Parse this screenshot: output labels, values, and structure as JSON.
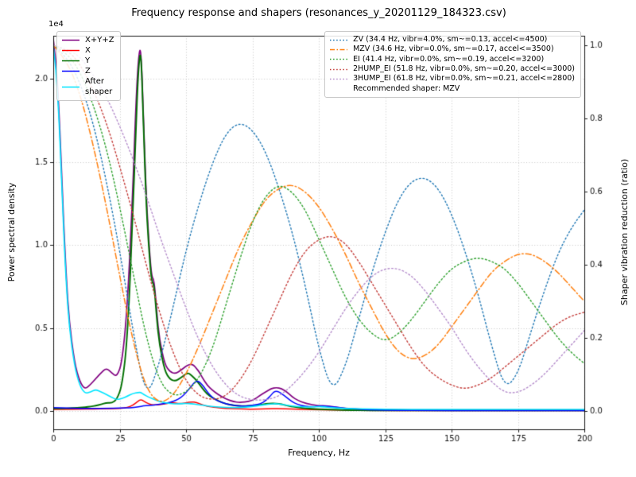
{
  "chart_data": {
    "type": "line",
    "title": "Frequency response and shapers (resonances_y_20201129_184323.csv)",
    "xlabel": "Frequency, Hz",
    "ylabel_left": "Power spectral density",
    "ylabel_right": "Shaper vibration reduction (ratio)",
    "offset_text": "1e4",
    "xlim": [
      0,
      200
    ],
    "ylim_left": [
      -1100,
      22600
    ],
    "ylim_right": [
      -0.05,
      1.026
    ],
    "grid": true,
    "legend_position_left": "upper left",
    "legend_position_right": "upper right",
    "legend_right_footer": "Recommended shaper: MZV",
    "xticks": {
      "values": [
        0,
        25,
        50,
        75,
        100,
        125,
        150,
        175,
        200
      ],
      "labels": [
        "0",
        "25",
        "50",
        "75",
        "100",
        "125",
        "150",
        "175",
        "200"
      ]
    },
    "yticks_left": {
      "values": [
        0,
        5000,
        10000,
        15000,
        20000
      ],
      "labels": [
        "0.0",
        "0.5",
        "1.0",
        "1.5",
        "2.0"
      ]
    },
    "yticks_right": {
      "values": [
        0,
        0.2,
        0.4,
        0.6,
        0.8,
        1.0
      ],
      "labels": [
        "0.0",
        "0.2",
        "0.4",
        "0.6",
        "0.8",
        "1.0"
      ]
    },
    "psd_series": [
      {
        "label": "X+Y+Z",
        "color": "#800080",
        "style": "solid",
        "width": 1.7,
        "axis": "left",
        "x": [
          0,
          1,
          2,
          3,
          4,
          5,
          6,
          8,
          10,
          12,
          14,
          16,
          18,
          20,
          22,
          24,
          26,
          28,
          30,
          31,
          32,
          33,
          34,
          35,
          36,
          37,
          38,
          39,
          40,
          42,
          44,
          46,
          48,
          50,
          51,
          52,
          53,
          54,
          55,
          56,
          58,
          60,
          62,
          65,
          68,
          70,
          72,
          75,
          78,
          80,
          82,
          84,
          86,
          88,
          90,
          92,
          95,
          100,
          102,
          105,
          110,
          115,
          120,
          130,
          140,
          150,
          160,
          170,
          180,
          190,
          200
        ],
        "y": [
          22400,
          21200,
          18600,
          15000,
          11000,
          7800,
          5400,
          2900,
          1750,
          1300,
          1600,
          1950,
          2300,
          2600,
          2300,
          2050,
          3000,
          6500,
          13500,
          18000,
          21200,
          22100,
          17500,
          13000,
          10200,
          8100,
          7900,
          5900,
          4300,
          2800,
          2350,
          2250,
          2450,
          2700,
          2780,
          2820,
          2750,
          2550,
          2350,
          2050,
          1550,
          1250,
          1000,
          720,
          560,
          520,
          540,
          620,
          950,
          1150,
          1350,
          1420,
          1350,
          1150,
          850,
          650,
          460,
          310,
          330,
          260,
          160,
          110,
          85,
          65,
          55,
          45,
          45,
          45,
          45,
          45,
          45
        ]
      },
      {
        "label": "X",
        "color": "#ff0000",
        "style": "solid",
        "width": 1.5,
        "axis": "left",
        "x": [
          0,
          5,
          10,
          15,
          20,
          25,
          28,
          30,
          32,
          33,
          34,
          36,
          38,
          40,
          42,
          44,
          45,
          46,
          48,
          50,
          52,
          54,
          56,
          58,
          60,
          65,
          70,
          75,
          80,
          85,
          90,
          95,
          100,
          110,
          120,
          140,
          160,
          180,
          200
        ],
        "y": [
          100,
          100,
          110,
          120,
          140,
          160,
          210,
          350,
          600,
          700,
          600,
          420,
          360,
          390,
          430,
          480,
          500,
          480,
          440,
          490,
          560,
          510,
          390,
          290,
          230,
          160,
          120,
          110,
          130,
          150,
          120,
          90,
          70,
          45,
          30,
          25,
          20,
          20,
          20
        ]
      },
      {
        "label": "Y",
        "color": "#007000",
        "style": "solid",
        "width": 1.9,
        "axis": "left",
        "x": [
          0,
          2,
          4,
          6,
          8,
          10,
          12,
          14,
          16,
          18,
          20,
          22,
          24,
          26,
          28,
          30,
          31,
          32,
          33,
          34,
          35,
          36,
          37,
          38,
          39,
          40,
          42,
          44,
          46,
          48,
          50,
          51,
          52,
          54,
          56,
          58,
          60,
          62,
          65,
          68,
          70,
          72,
          75,
          78,
          80,
          82,
          84,
          86,
          88,
          90,
          95,
          100,
          105,
          110,
          120,
          130,
          140,
          150,
          160,
          170,
          180,
          190,
          200
        ],
        "y": [
          150,
          150,
          160,
          170,
          185,
          200,
          230,
          270,
          320,
          400,
          500,
          480,
          700,
          1600,
          4500,
          12000,
          16500,
          20500,
          22000,
          17000,
          12500,
          9800,
          7800,
          7600,
          5500,
          4000,
          2400,
          1900,
          1800,
          2000,
          2250,
          2280,
          2150,
          1850,
          1400,
          1000,
          800,
          620,
          430,
          340,
          310,
          300,
          330,
          380,
          430,
          460,
          450,
          410,
          330,
          260,
          160,
          110,
          90,
          60,
          40,
          35,
          30,
          30,
          30,
          30,
          30,
          30,
          30
        ]
      },
      {
        "label": "Z",
        "color": "#0000ff",
        "style": "solid",
        "width": 1.5,
        "axis": "left",
        "x": [
          0,
          5,
          10,
          15,
          20,
          25,
          30,
          32,
          34,
          36,
          38,
          40,
          42,
          44,
          46,
          48,
          50,
          52,
          53,
          54,
          55,
          56,
          57,
          58,
          60,
          62,
          65,
          68,
          70,
          72,
          75,
          78,
          80,
          82,
          83,
          84,
          85,
          86,
          88,
          90,
          92,
          95,
          98,
          100,
          102,
          105,
          108,
          110,
          115,
          120,
          130,
          140,
          160,
          180,
          200
        ],
        "y": [
          200,
          180,
          160,
          155,
          165,
          175,
          210,
          255,
          305,
          335,
          365,
          405,
          455,
          525,
          625,
          800,
          1100,
          1500,
          1700,
          1800,
          1760,
          1600,
          1400,
          1150,
          800,
          600,
          430,
          340,
          310,
          300,
          330,
          430,
          620,
          950,
          1150,
          1200,
          1150,
          1050,
          800,
          550,
          400,
          280,
          255,
          290,
          300,
          260,
          200,
          160,
          100,
          70,
          40,
          30,
          25,
          25,
          25
        ]
      },
      {
        "label": "After\nshaper",
        "color": "#00e5ff",
        "style": "solid",
        "width": 1.6,
        "axis": "left",
        "x": [
          0,
          1,
          2,
          3,
          4,
          5,
          6,
          8,
          10,
          12,
          14,
          16,
          18,
          20,
          22,
          24,
          26,
          28,
          30,
          32,
          33,
          34,
          36,
          38,
          40,
          44,
          48,
          50,
          52,
          55,
          58,
          60,
          65,
          70,
          75,
          78,
          80,
          82,
          84,
          86,
          90,
          95,
          100,
          102,
          105,
          110,
          120,
          130,
          140,
          150,
          160,
          170,
          180,
          190,
          200
        ],
        "y": [
          22000,
          20700,
          18100,
          14500,
          10500,
          7400,
          5100,
          2700,
          1500,
          1050,
          1150,
          1300,
          1150,
          1000,
          820,
          680,
          760,
          900,
          1060,
          1120,
          1120,
          1000,
          830,
          700,
          570,
          430,
          440,
          460,
          440,
          380,
          310,
          270,
          210,
          200,
          270,
          340,
          390,
          430,
          440,
          400,
          300,
          230,
          270,
          250,
          200,
          150,
          115,
          100,
          95,
          95,
          95,
          95,
          95,
          95,
          95
        ]
      }
    ],
    "shaper_series": [
      {
        "label": "ZV (34.4 Hz, vibr=4.0%, sm~=0.13, accel<=4500)",
        "color": "#1f77b4",
        "style": "dotted",
        "width": 1.4,
        "axis": "right",
        "x": [
          0,
          5,
          10,
          15,
          20,
          25,
          30,
          35,
          40,
          45,
          50,
          55,
          60,
          65,
          70,
          75,
          80,
          85,
          90,
          95,
          100,
          105,
          110,
          115,
          120,
          125,
          130,
          135,
          140,
          145,
          150,
          155,
          160,
          165,
          170,
          175,
          180,
          185,
          190,
          195,
          200
        ],
        "y": [
          1.0,
          0.97,
          0.9,
          0.79,
          0.63,
          0.44,
          0.22,
          0.03,
          0.13,
          0.28,
          0.44,
          0.57,
          0.68,
          0.76,
          0.79,
          0.77,
          0.71,
          0.61,
          0.49,
          0.34,
          0.17,
          0.05,
          0.12,
          0.25,
          0.38,
          0.49,
          0.58,
          0.63,
          0.64,
          0.61,
          0.54,
          0.44,
          0.32,
          0.18,
          0.06,
          0.1,
          0.22,
          0.33,
          0.43,
          0.5,
          0.55
        ]
      },
      {
        "label": "MZV (34.6 Hz, vibr=0.0%, sm~=0.17, accel<=3500)",
        "color": "#ff7f0e",
        "style": "dashdot",
        "width": 1.5,
        "axis": "right",
        "x": [
          0,
          5,
          10,
          15,
          20,
          25,
          30,
          35,
          40,
          45,
          50,
          55,
          60,
          65,
          70,
          75,
          80,
          85,
          90,
          95,
          100,
          105,
          110,
          115,
          120,
          125,
          130,
          135,
          140,
          145,
          150,
          155,
          160,
          165,
          170,
          175,
          180,
          185,
          190,
          195,
          200
        ],
        "y": [
          1.0,
          0.96,
          0.87,
          0.73,
          0.56,
          0.37,
          0.19,
          0.06,
          0.02,
          0.04,
          0.1,
          0.18,
          0.27,
          0.36,
          0.45,
          0.52,
          0.58,
          0.61,
          0.62,
          0.6,
          0.56,
          0.5,
          0.43,
          0.35,
          0.28,
          0.21,
          0.16,
          0.14,
          0.15,
          0.18,
          0.23,
          0.28,
          0.33,
          0.38,
          0.41,
          0.43,
          0.43,
          0.41,
          0.38,
          0.34,
          0.3
        ]
      },
      {
        "label": "EI (41.4 Hz, vibr=0.0%, sm~=0.19, accel<=3200)",
        "color": "#2ca02c",
        "style": "dotted",
        "width": 1.4,
        "axis": "right",
        "x": [
          0,
          5,
          10,
          15,
          20,
          25,
          30,
          35,
          40,
          45,
          50,
          55,
          60,
          65,
          70,
          75,
          80,
          85,
          90,
          95,
          100,
          105,
          110,
          115,
          120,
          125,
          130,
          135,
          140,
          145,
          150,
          155,
          160,
          165,
          170,
          175,
          180,
          185,
          190,
          195,
          200
        ],
        "y": [
          1.0,
          0.98,
          0.93,
          0.84,
          0.72,
          0.56,
          0.38,
          0.2,
          0.08,
          0.04,
          0.05,
          0.09,
          0.17,
          0.29,
          0.41,
          0.52,
          0.59,
          0.62,
          0.6,
          0.55,
          0.47,
          0.39,
          0.31,
          0.25,
          0.21,
          0.19,
          0.21,
          0.25,
          0.3,
          0.35,
          0.39,
          0.41,
          0.42,
          0.41,
          0.39,
          0.35,
          0.3,
          0.25,
          0.2,
          0.16,
          0.13
        ]
      },
      {
        "label": "2HUMP_EI (51.8 Hz, vibr=0.0%, sm~=0.20, accel<=3000)",
        "color": "#c43c39",
        "style": "dotted",
        "width": 1.4,
        "axis": "right",
        "x": [
          0,
          5,
          10,
          15,
          20,
          25,
          30,
          35,
          40,
          45,
          50,
          55,
          60,
          65,
          70,
          75,
          80,
          85,
          90,
          95,
          100,
          105,
          110,
          115,
          120,
          125,
          130,
          135,
          140,
          145,
          150,
          155,
          160,
          165,
          170,
          175,
          180,
          185,
          190,
          195,
          200
        ],
        "y": [
          1.0,
          0.99,
          0.95,
          0.88,
          0.79,
          0.67,
          0.54,
          0.4,
          0.27,
          0.16,
          0.08,
          0.04,
          0.03,
          0.04,
          0.08,
          0.14,
          0.22,
          0.3,
          0.38,
          0.44,
          0.47,
          0.48,
          0.46,
          0.41,
          0.35,
          0.29,
          0.23,
          0.17,
          0.12,
          0.09,
          0.07,
          0.06,
          0.07,
          0.09,
          0.12,
          0.15,
          0.18,
          0.21,
          0.24,
          0.26,
          0.27
        ]
      },
      {
        "label": "3HUMP_EI (61.8 Hz, vibr=0.0%, sm~=0.21, accel<=2800)",
        "color": "#b48ccb",
        "style": "dotted",
        "width": 1.4,
        "axis": "right",
        "x": [
          0,
          5,
          10,
          15,
          20,
          25,
          30,
          35,
          40,
          45,
          50,
          55,
          60,
          65,
          70,
          75,
          80,
          85,
          90,
          95,
          100,
          105,
          110,
          115,
          120,
          125,
          130,
          135,
          140,
          145,
          150,
          155,
          160,
          165,
          170,
          175,
          180,
          185,
          190,
          195,
          200
        ],
        "y": [
          1.0,
          0.99,
          0.97,
          0.92,
          0.86,
          0.78,
          0.69,
          0.59,
          0.48,
          0.38,
          0.28,
          0.19,
          0.12,
          0.07,
          0.04,
          0.03,
          0.03,
          0.04,
          0.07,
          0.11,
          0.16,
          0.22,
          0.28,
          0.33,
          0.37,
          0.39,
          0.39,
          0.37,
          0.33,
          0.28,
          0.23,
          0.17,
          0.12,
          0.08,
          0.05,
          0.05,
          0.07,
          0.1,
          0.14,
          0.18,
          0.22
        ]
      }
    ]
  }
}
